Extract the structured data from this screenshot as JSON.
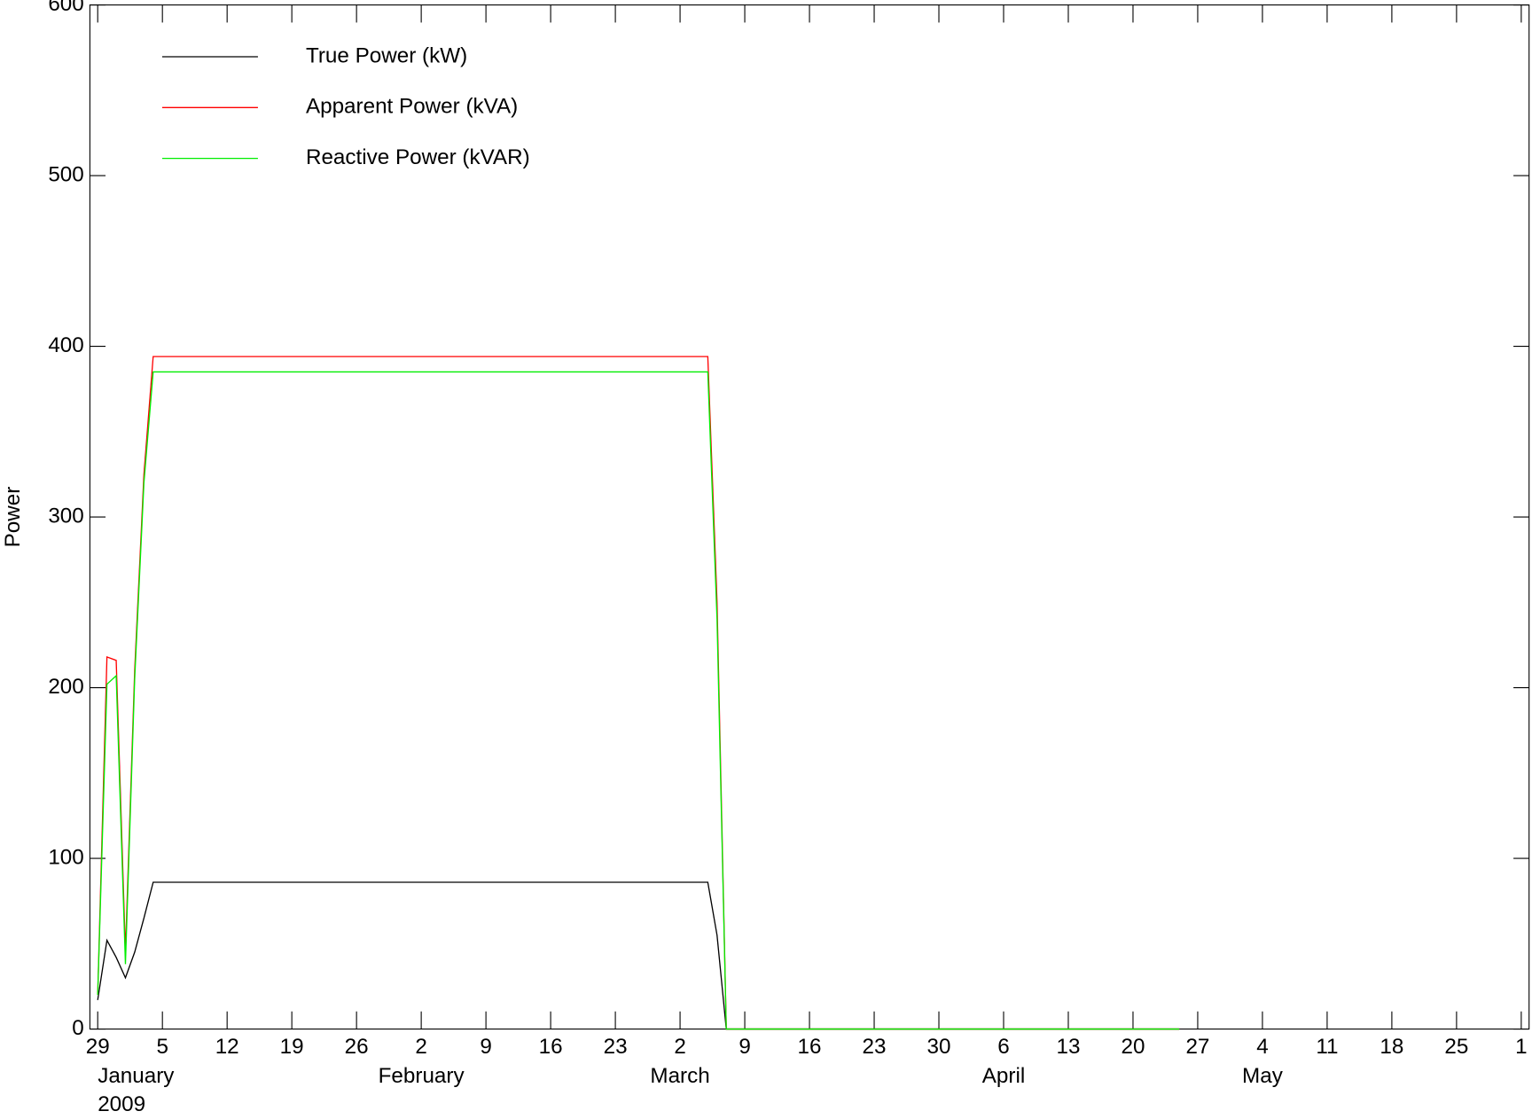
{
  "chart_data": {
    "type": "line",
    "y_label": "Power",
    "x": [
      "2008-12-29",
      "2008-12-30",
      "2008-12-31",
      "2009-01-01",
      "2009-01-02",
      "2009-01-03",
      "2009-01-04",
      "2009-03-05",
      "2009-03-06",
      "2009-03-07",
      "2009-04-25"
    ],
    "series": [
      {
        "name": "True Power (kW)",
        "color": "#000000",
        "values": [
          17,
          52,
          42,
          30,
          45,
          65,
          86,
          86,
          55,
          0,
          0
        ]
      },
      {
        "name": "Apparent Power (kVA)",
        "color": "#ff0000",
        "values": [
          20,
          218,
          216,
          45,
          210,
          325,
          394,
          394,
          250,
          0,
          0
        ]
      },
      {
        "name": "Reactive Power (kVAR)",
        "color": "#00ee00",
        "values": [
          20,
          202,
          207,
          38,
          205,
          320,
          385,
          385,
          240,
          0,
          0
        ]
      }
    ],
    "xlim": [
      "2008-12-29",
      "2009-06-01"
    ],
    "xticks": [
      {
        "value": "2008-12-29",
        "label": "29"
      },
      {
        "value": "2009-01-05",
        "label": "5"
      },
      {
        "value": "2009-01-12",
        "label": "12"
      },
      {
        "value": "2009-01-19",
        "label": "19"
      },
      {
        "value": "2009-01-26",
        "label": "26"
      },
      {
        "value": "2009-02-02",
        "label": "2"
      },
      {
        "value": "2009-02-09",
        "label": "9"
      },
      {
        "value": "2009-02-16",
        "label": "16"
      },
      {
        "value": "2009-02-23",
        "label": "23"
      },
      {
        "value": "2009-03-02",
        "label": "2"
      },
      {
        "value": "2009-03-09",
        "label": "9"
      },
      {
        "value": "2009-03-16",
        "label": "16"
      },
      {
        "value": "2009-03-23",
        "label": "23"
      },
      {
        "value": "2009-03-30",
        "label": "30"
      },
      {
        "value": "2009-04-06",
        "label": "6"
      },
      {
        "value": "2009-04-13",
        "label": "13"
      },
      {
        "value": "2009-04-20",
        "label": "20"
      },
      {
        "value": "2009-04-27",
        "label": "27"
      },
      {
        "value": "2009-05-04",
        "label": "4"
      },
      {
        "value": "2009-05-11",
        "label": "11"
      },
      {
        "value": "2009-05-18",
        "label": "18"
      },
      {
        "value": "2009-05-25",
        "label": "25"
      },
      {
        "value": "2009-06-01",
        "label": "1"
      }
    ],
    "month_labels": [
      {
        "value": "2008-12-29",
        "label": "January"
      },
      {
        "value": "2009-02-02",
        "label": "February"
      },
      {
        "value": "2009-03-02",
        "label": "March"
      },
      {
        "value": "2009-04-06",
        "label": "April"
      },
      {
        "value": "2009-05-04",
        "label": "May"
      }
    ],
    "year_label": "2009",
    "ylim": [
      0,
      600
    ],
    "yticks": [
      0,
      100,
      200,
      300,
      400,
      500,
      600
    ],
    "legend": "upper left"
  }
}
